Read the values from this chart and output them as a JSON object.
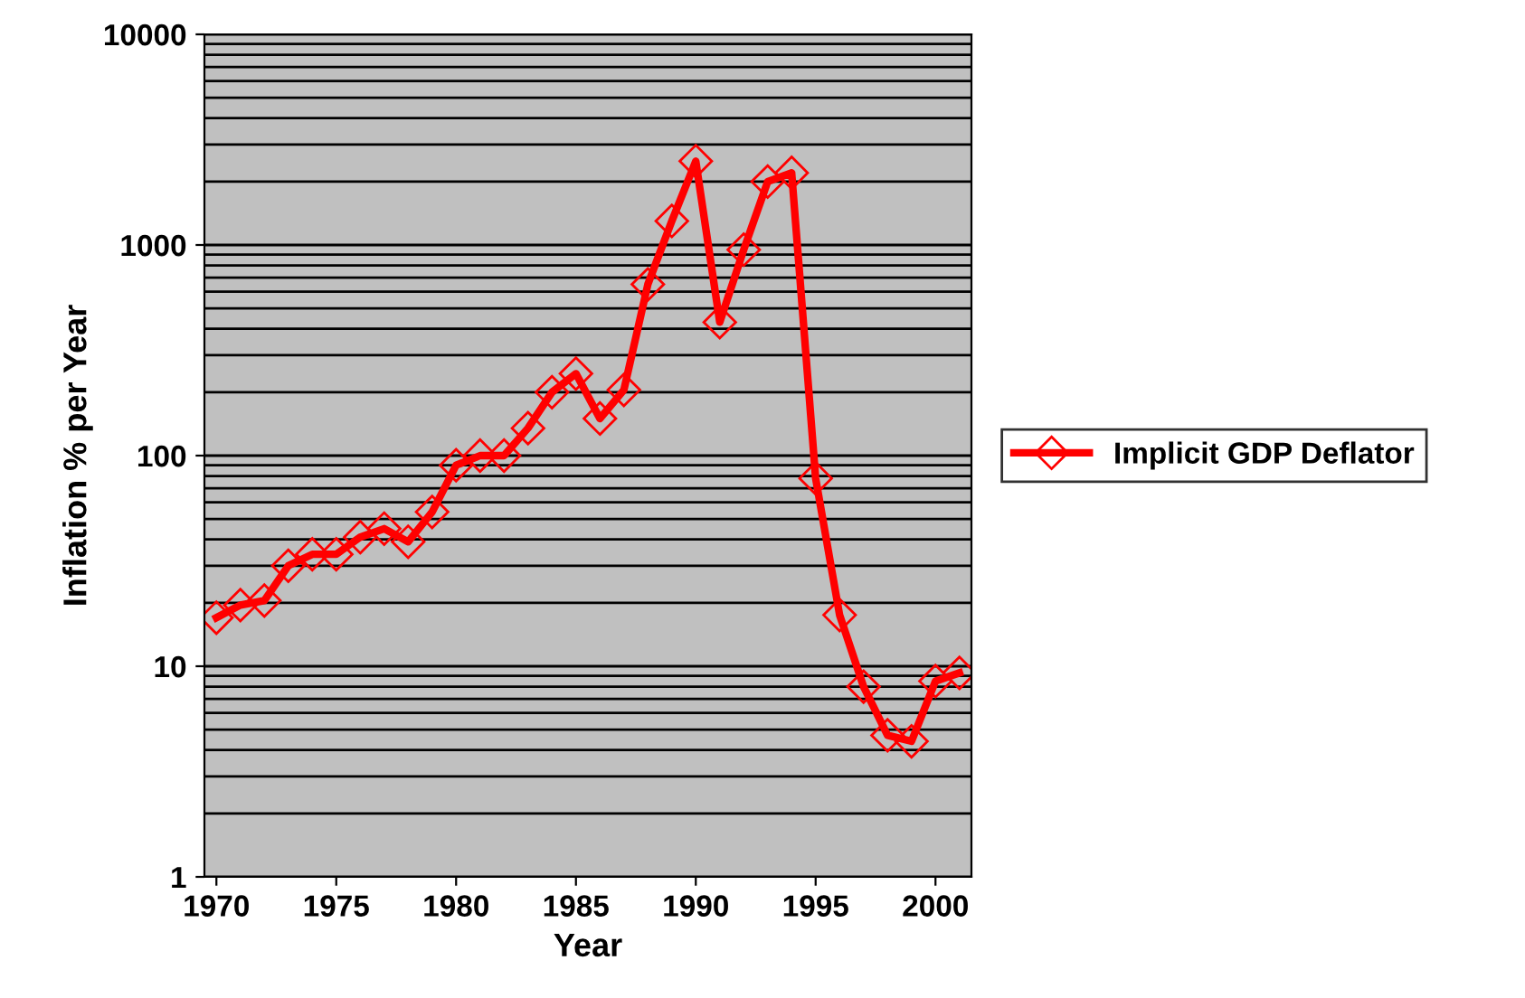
{
  "chart_data": {
    "type": "line",
    "xlabel": "Year",
    "ylabel": "Inflation % per Year",
    "log": "y",
    "grid": "y",
    "legend": "right",
    "marker": "diamond",
    "line_style": "solid",
    "x": [
      1970,
      1971,
      1972,
      1973,
      1974,
      1975,
      1976,
      1977,
      1978,
      1979,
      1980,
      1981,
      1982,
      1983,
      1984,
      1985,
      1986,
      1987,
      1988,
      1989,
      1990,
      1991,
      1992,
      1993,
      1994,
      1995,
      1996,
      1997,
      1998,
      1999,
      2000,
      2001
    ],
    "series": [
      {
        "name": "Implicit GDP Deflator",
        "color": "#ff0000",
        "values": [
          17,
          19.5,
          20.5,
          30,
          34,
          34,
          41,
          45,
          39,
          54,
          90,
          100,
          100,
          135,
          200,
          245,
          150,
          205,
          650,
          1300,
          2500,
          430,
          950,
          2000,
          2200,
          78,
          17.5,
          8,
          4.7,
          4.4,
          8.5,
          9.3
        ]
      }
    ],
    "xlim": [
      1969.5,
      2001.5
    ],
    "xticks": [
      1970,
      1975,
      1980,
      1985,
      1990,
      1995,
      2000
    ],
    "ylim": [
      1,
      10000
    ],
    "yticks": [
      1,
      10,
      100,
      1000,
      10000
    ]
  }
}
